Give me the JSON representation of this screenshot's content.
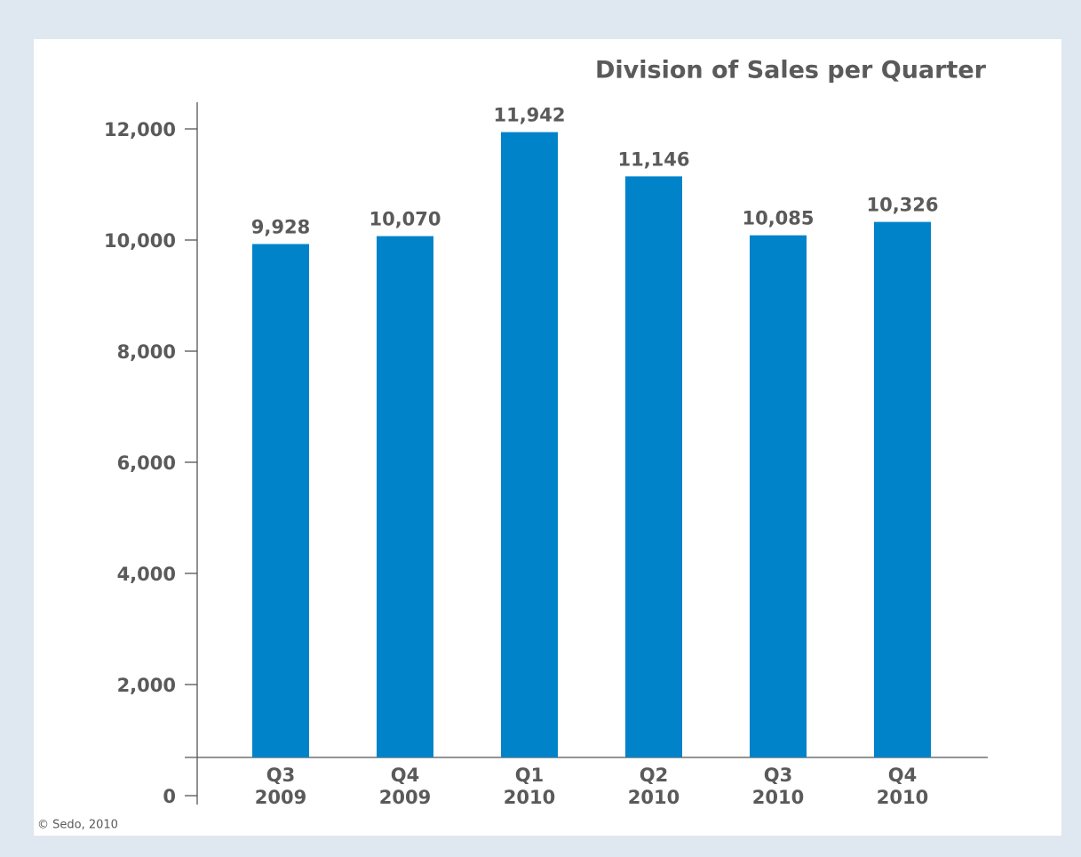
{
  "chart_data": {
    "type": "bar",
    "title": "Division of Sales per Quarter",
    "categories": [
      "Q3\n2009",
      "Q4\n2009",
      "Q1\n2010",
      "Q2\n2010",
      "Q3\n2010",
      "Q4\n2010"
    ],
    "values": [
      9928,
      10070,
      11942,
      11146,
      10085,
      10326
    ],
    "value_labels": [
      "9,928",
      "10,070",
      "11,942",
      "11,146",
      "10,085",
      "10,326"
    ],
    "color": "#0083c9",
    "ylim": [
      0,
      12000
    ],
    "yticks": [
      0,
      {
        "value": 2000,
        "label": "2,000"
      },
      {
        "value": 4000,
        "label": "4,000"
      },
      {
        "value": 6000,
        "label": "6,000"
      },
      {
        "value": 8000,
        "label": "8,000"
      },
      {
        "value": 10000,
        "label": "10,000"
      },
      {
        "value": 12000,
        "label": "12,000"
      }
    ],
    "grid": false,
    "source": "© Sedo, 2010"
  }
}
